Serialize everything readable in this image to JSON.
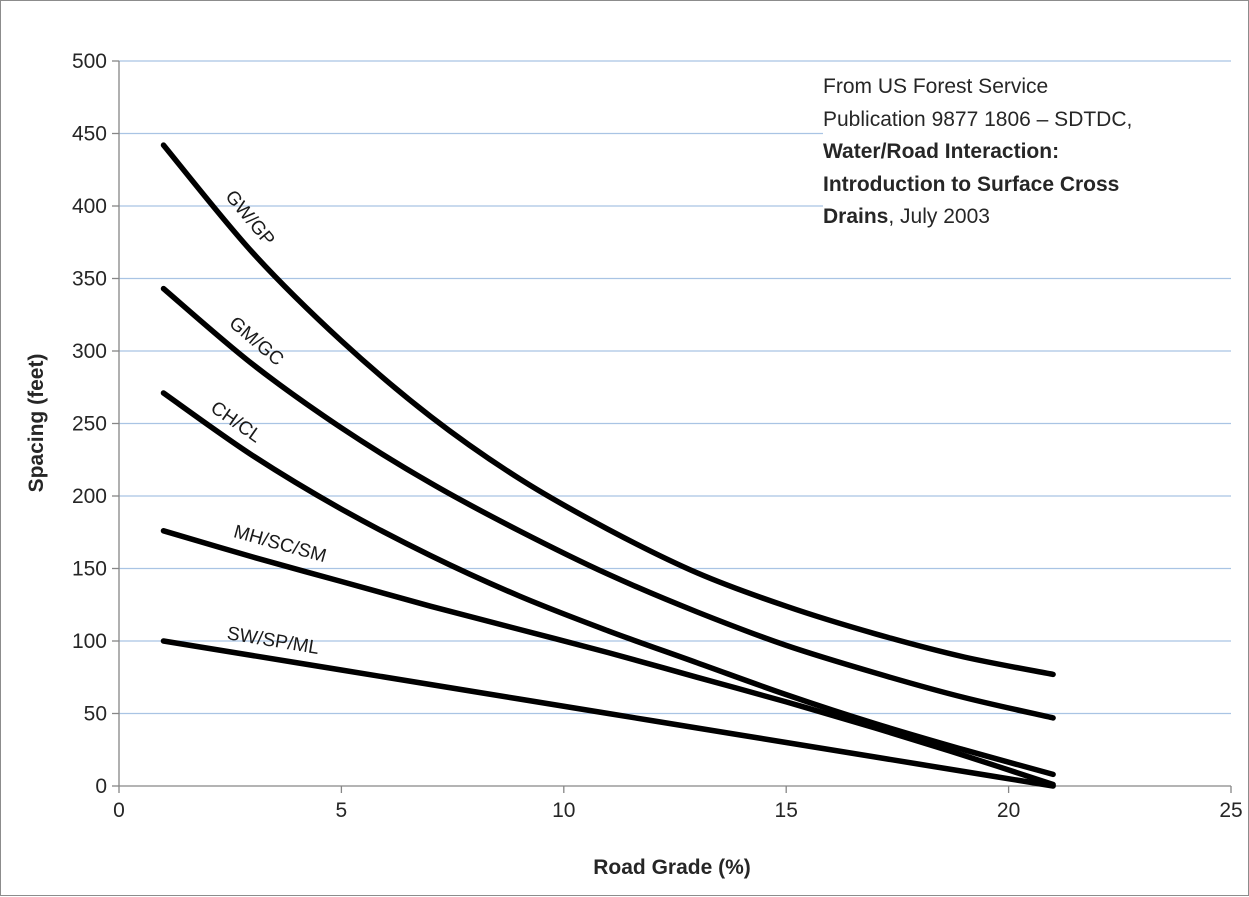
{
  "chart_data": {
    "type": "line",
    "xlabel": "Road Grade (%)",
    "ylabel": "Spacing (feet)",
    "xlim": [
      0,
      25
    ],
    "ylim": [
      0,
      500
    ],
    "x_ticks": [
      "0",
      "5",
      "10",
      "15",
      "20",
      "25"
    ],
    "y_ticks": [
      "0",
      "50",
      "100",
      "150",
      "200",
      "250",
      "300",
      "350",
      "400",
      "450",
      "500"
    ],
    "grid": "horizontal",
    "legend": "none (curves labeled inline)",
    "series": [
      {
        "name": "GW/GP",
        "x": [
          1,
          3,
          5,
          7,
          9,
          11,
          13,
          15,
          17,
          19,
          21
        ],
        "y": [
          442,
          368,
          307,
          255,
          212,
          177,
          147,
          124,
          105,
          89,
          77
        ]
      },
      {
        "name": "GM/GC",
        "x": [
          1,
          3,
          5,
          7,
          9,
          11,
          13,
          15,
          17,
          19,
          21
        ],
        "y": [
          343,
          291,
          247,
          209,
          176,
          146,
          120,
          97,
          78,
          61,
          47
        ]
      },
      {
        "name": "CH/CL",
        "x": [
          1,
          3,
          5,
          7,
          9,
          11,
          13,
          15,
          17,
          19,
          21
        ],
        "y": [
          271,
          228,
          191,
          159,
          131,
          107,
          85,
          63,
          43,
          25,
          8
        ]
      },
      {
        "name": "MH/SC/SM",
        "x": [
          1,
          3,
          5,
          7,
          9,
          11,
          13,
          15,
          17,
          19,
          21
        ],
        "y": [
          176,
          158,
          141,
          124,
          108,
          92,
          75,
          58,
          40,
          21,
          1
        ]
      },
      {
        "name": "SW/SP/ML",
        "x": [
          1,
          3,
          5,
          7,
          9,
          11,
          13,
          15,
          17,
          19,
          21
        ],
        "y": [
          100,
          90,
          80,
          70,
          60,
          50,
          40,
          30,
          20,
          10,
          0
        ]
      }
    ],
    "annotation": {
      "line1": "From US Forest Service",
      "line2": "Publication 9877 1806  – SDTDC,",
      "line3": "Water/Road Interaction:",
      "line4": "Introduction to Surface Cross",
      "line5_bold": "Drains",
      "line5_rest": ", July 2003"
    }
  }
}
